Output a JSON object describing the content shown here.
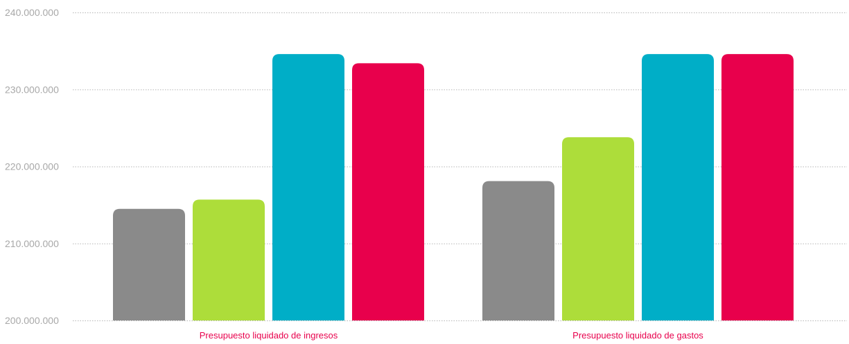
{
  "chart_data": {
    "type": "bar",
    "categories": [
      "Presupuesto liquidado de ingresos",
      "Presupuesto liquidado de gastos"
    ],
    "series": [
      {
        "values": [
          214500000,
          218100000
        ],
        "color": "#8a8a8a"
      },
      {
        "values": [
          215700000,
          223800000
        ],
        "color": "#addd3a"
      },
      {
        "values": [
          234600000,
          234600000
        ],
        "color": "#00aec7"
      },
      {
        "values": [
          233400000,
          234600000
        ],
        "color": "#e8004c"
      }
    ],
    "ylim": [
      200000000,
      240000000
    ],
    "yticks": [
      200000000,
      210000000,
      220000000,
      230000000,
      240000000
    ],
    "ytick_labels": [
      "200.000.000",
      "210.000.000",
      "220.000.000",
      "230.000.000",
      "240.000.000"
    ],
    "grid": true,
    "category_label_color": "#e8004c",
    "gridline_color": "#b5b5b5",
    "tick_label_color": "#a8a8a8"
  }
}
